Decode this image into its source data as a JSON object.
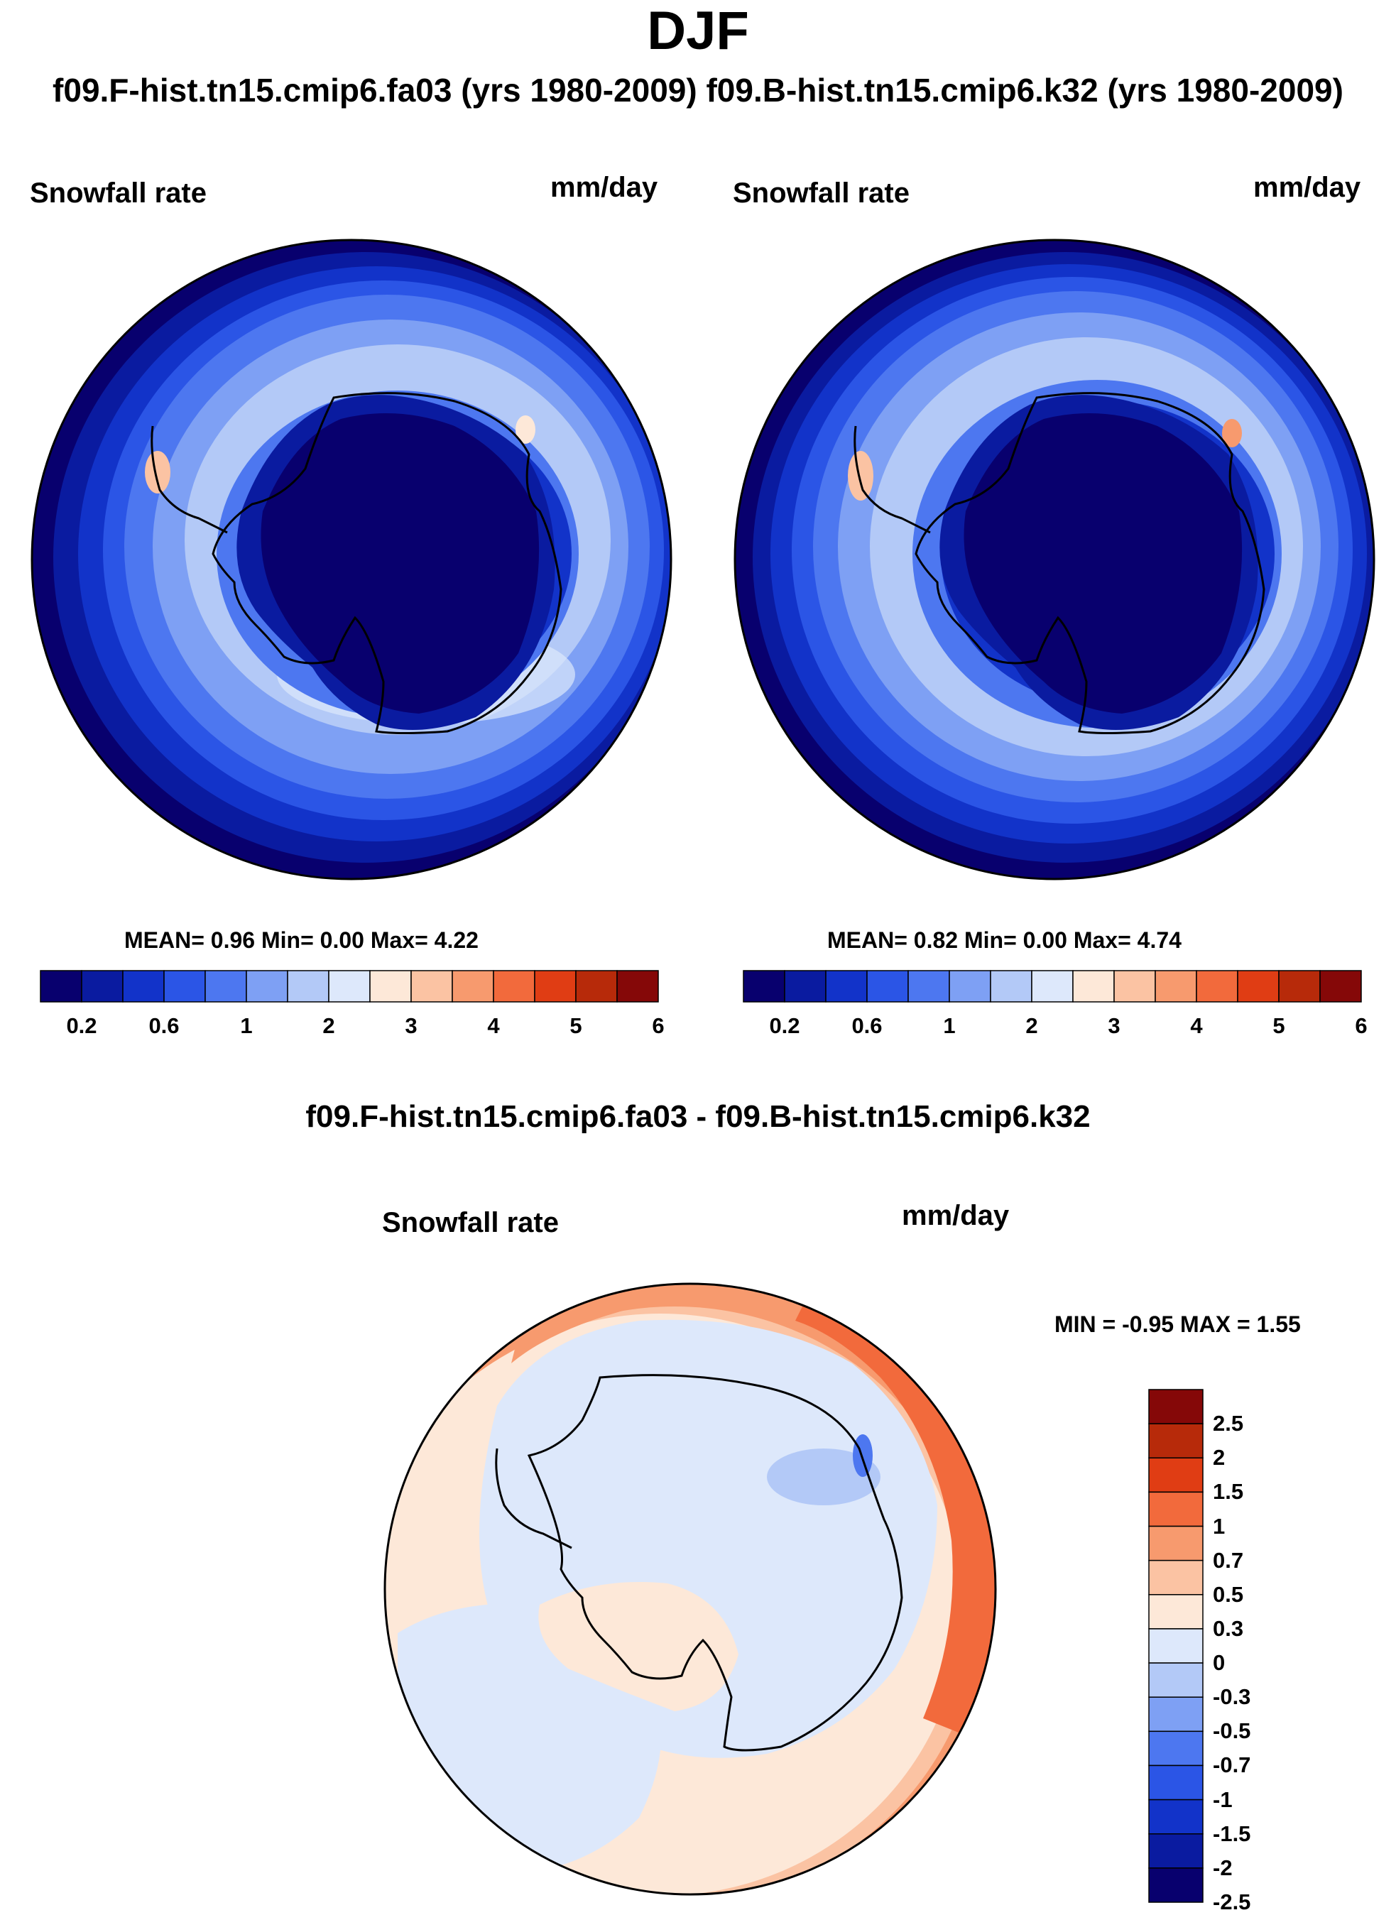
{
  "figure": {
    "title": "DJF",
    "run_titles": "f09.F-hist.tn15.cmip6.fa03 (yrs 1980-2009)  f09.B-hist.tn15.cmip6.k32 (yrs 1980-2009)"
  },
  "colors": {
    "blue_reds": [
      "#08006e",
      "#0a1ba0",
      "#1233c9",
      "#2b55e6",
      "#4d77f0",
      "#7ea0f4",
      "#b3c9f7",
      "#dde8fb",
      "#fde8d8",
      "#fbc3a3",
      "#f79a6e",
      "#f26a3c",
      "#e03d14",
      "#b72a0a",
      "#850808"
    ],
    "coastline": "#000000"
  },
  "chart_data": [
    {
      "type": "contour_map",
      "projection": "south-polar-stereographic",
      "title": "Snowfall rate",
      "units": "mm/day",
      "stats_text": "MEAN=   0.96  Min=   0.00  Max=   4.22",
      "mean": 0.96,
      "min": 0.0,
      "max": 4.22,
      "colorbar": {
        "orientation": "horizontal",
        "levels": [
          0.2,
          0.4,
          0.6,
          0.8,
          1,
          1.5,
          2,
          2.5,
          3,
          3.5,
          4,
          4.5,
          5,
          5.5,
          6
        ],
        "tick_labels": [
          "0.2",
          "0.6",
          "1",
          "2",
          "3",
          "4",
          "5",
          "6"
        ]
      }
    },
    {
      "type": "contour_map",
      "projection": "south-polar-stereographic",
      "title": "Snowfall rate",
      "units": "mm/day",
      "stats_text": "MEAN=   0.82  Min=   0.00  Max=   4.74",
      "mean": 0.82,
      "min": 0.0,
      "max": 4.74,
      "colorbar": {
        "orientation": "horizontal",
        "levels": [
          0.2,
          0.4,
          0.6,
          0.8,
          1,
          1.5,
          2,
          2.5,
          3,
          3.5,
          4,
          4.5,
          5,
          5.5,
          6
        ],
        "tick_labels": [
          "0.2",
          "0.6",
          "1",
          "2",
          "3",
          "4",
          "5",
          "6"
        ]
      }
    },
    {
      "type": "contour_map",
      "projection": "south-polar-stereographic",
      "heading": "f09.F-hist.tn15.cmip6.fa03 - f09.B-hist.tn15.cmip6.k32",
      "title": "Snowfall rate",
      "units": "mm/day",
      "stats_text": "MIN =  -0.95 MAX =   1.55",
      "min": -0.95,
      "max": 1.55,
      "colorbar": {
        "orientation": "vertical",
        "tick_labels": [
          "2.5",
          "2",
          "1.5",
          "1",
          "0.7",
          "0.5",
          "0.3",
          "0",
          "-0.3",
          "-0.5",
          "-0.7",
          "-1",
          "-1.5",
          "-2",
          "-2.5"
        ]
      }
    }
  ]
}
